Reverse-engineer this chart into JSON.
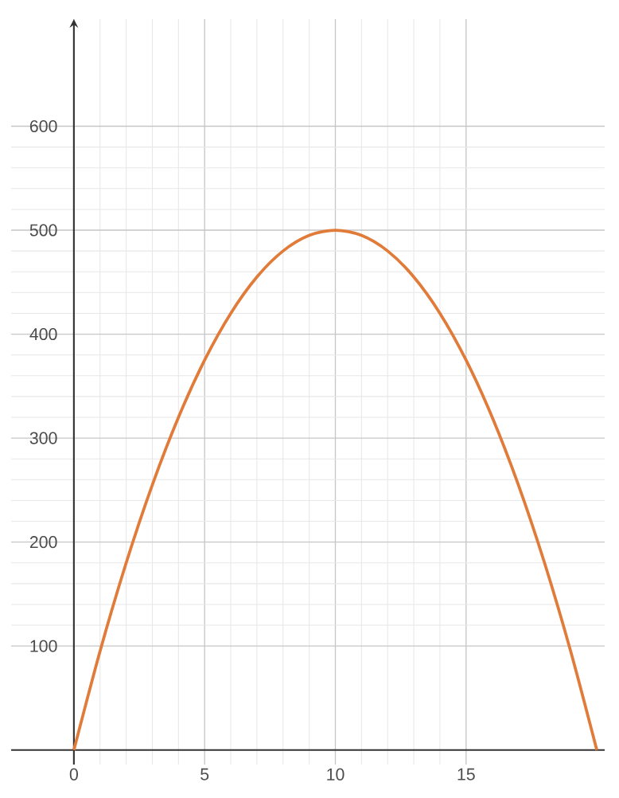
{
  "chart_data": {
    "type": "line",
    "x": [
      0,
      1,
      2,
      3,
      4,
      5,
      6,
      7,
      8,
      9,
      10,
      11,
      12,
      13,
      14,
      15,
      16,
      17,
      18,
      19,
      20
    ],
    "series": [
      {
        "color": "#e07b39",
        "values": [
          0,
          95,
          180,
          255,
          320,
          375,
          420,
          455,
          480,
          495,
          500,
          495,
          480,
          455,
          420,
          375,
          320,
          255,
          180,
          95,
          0
        ]
      }
    ],
    "xlim": [
      -2.4,
      20.3
    ],
    "ylim": [
      -14,
      703
    ],
    "xticks": [
      0,
      5,
      10,
      15
    ],
    "yticks": [
      100,
      200,
      300,
      400,
      500,
      600
    ],
    "grid": true,
    "marker": "none",
    "line_style": "solid"
  }
}
